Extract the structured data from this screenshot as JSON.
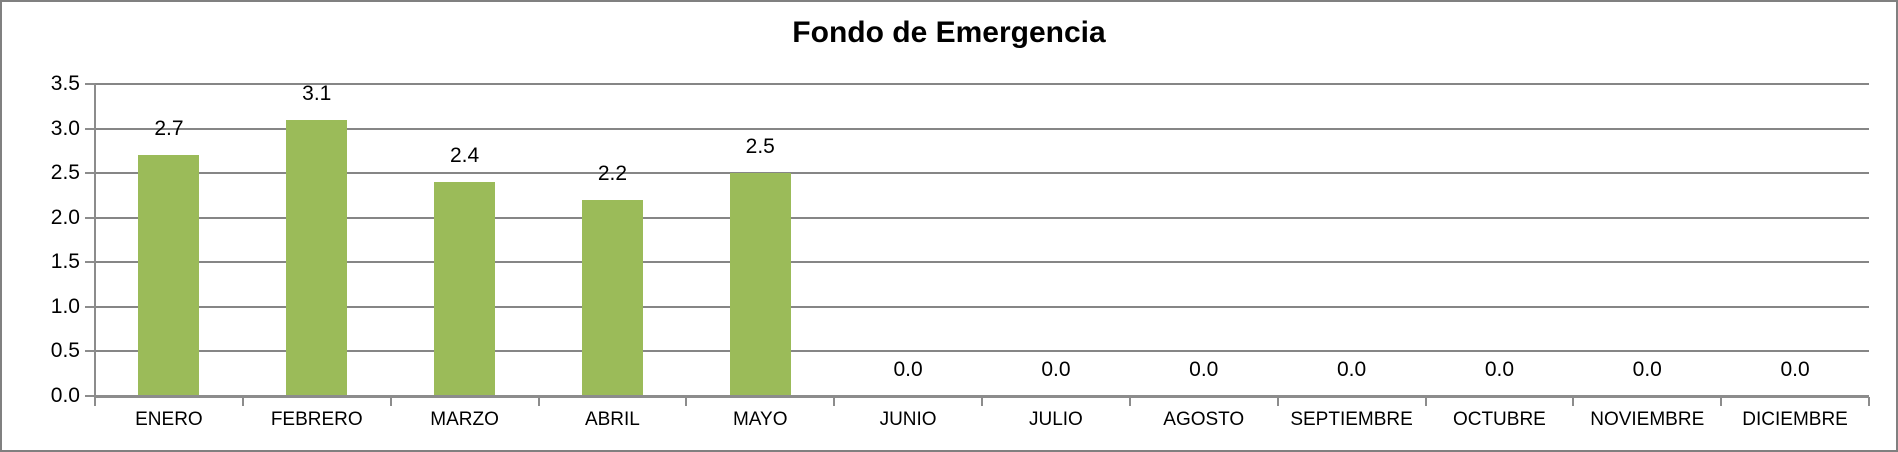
{
  "chart_data": {
    "type": "bar",
    "title": "Fondo de Emergencia",
    "categories": [
      "ENERO",
      "FEBRERO",
      "MARZO",
      "ABRIL",
      "MAYO",
      "JUNIO",
      "JULIO",
      "AGOSTO",
      "SEPTIEMBRE",
      "OCTUBRE",
      "NOVIEMBRE",
      "DICIEMBRE"
    ],
    "values": [
      2.7,
      3.1,
      2.4,
      2.2,
      2.5,
      0.0,
      0.0,
      0.0,
      0.0,
      0.0,
      0.0,
      0.0
    ],
    "data_labels": [
      "2.7",
      "3.1",
      "2.4",
      "2.2",
      "2.5",
      "0.0",
      "0.0",
      "0.0",
      "0.0",
      "0.0",
      "0.0",
      "0.0"
    ],
    "xlabel": "",
    "ylabel": "",
    "ylim": [
      0.0,
      3.5
    ],
    "ytick_step": 0.5,
    "ytick_labels": [
      "0.0",
      "0.5",
      "1.0",
      "1.5",
      "2.0",
      "2.5",
      "3.0",
      "3.5"
    ],
    "grid": true,
    "legend": false,
    "colors": {
      "bar": "#9BBB59",
      "gridline": "#868686",
      "axis": "#8C8C8C",
      "text": "#000000",
      "border": "#808080",
      "background": "#FFFFFF"
    }
  }
}
